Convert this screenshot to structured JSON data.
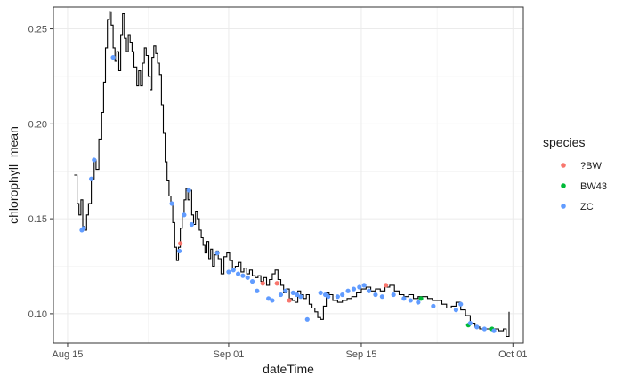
{
  "chart_data": {
    "type": "scatter",
    "xlabel": "dateTime",
    "ylabel": "chlorophyll_mean",
    "x_tick_labels": [
      "Aug 15",
      "Sep 01",
      "Sep 15",
      "Oct 01"
    ],
    "x_ticks_day": [
      -16,
      1,
      15,
      31
    ],
    "y_tick_labels": [
      "0.10",
      "0.15",
      "0.20",
      "0.25"
    ],
    "y_ticks": [
      0.1,
      0.15,
      0.2,
      0.25
    ],
    "xlim": [
      -17.5,
      32.1
    ],
    "ylim": [
      0.0845,
      0.2615
    ],
    "grid": true,
    "legend_position": "right",
    "legend_title": "species",
    "legend": [
      {
        "label": "?BW",
        "color": "#F8766D"
      },
      {
        "label": "BW43",
        "color": "#00BA38"
      },
      {
        "label": "ZC",
        "color": "#619CFF"
      }
    ],
    "line": {
      "color": "#000000",
      "points": [
        [
          -15.3,
          0.173
        ],
        [
          -15.0,
          0.158
        ],
        [
          -14.8,
          0.152
        ],
        [
          -14.6,
          0.16
        ],
        [
          -14.4,
          0.146
        ],
        [
          -14.2,
          0.144
        ],
        [
          -14.0,
          0.152
        ],
        [
          -13.8,
          0.158
        ],
        [
          -13.5,
          0.171
        ],
        [
          -13.2,
          0.181
        ],
        [
          -13.0,
          0.176
        ],
        [
          -12.7,
          0.192
        ],
        [
          -12.4,
          0.206
        ],
        [
          -12.2,
          0.222
        ],
        [
          -12.0,
          0.24
        ],
        [
          -11.8,
          0.255
        ],
        [
          -11.6,
          0.259
        ],
        [
          -11.4,
          0.252
        ],
        [
          -11.2,
          0.24
        ],
        [
          -11.0,
          0.233
        ],
        [
          -10.8,
          0.238
        ],
        [
          -10.6,
          0.228
        ],
        [
          -10.4,
          0.247
        ],
        [
          -10.2,
          0.258
        ],
        [
          -10.0,
          0.245
        ],
        [
          -9.8,
          0.238
        ],
        [
          -9.6,
          0.247
        ],
        [
          -9.4,
          0.243
        ],
        [
          -9.2,
          0.238
        ],
        [
          -9.0,
          0.23
        ],
        [
          -8.7,
          0.22
        ],
        [
          -8.5,
          0.228
        ],
        [
          -8.3,
          0.22
        ],
        [
          -8.1,
          0.232
        ],
        [
          -7.9,
          0.24
        ],
        [
          -7.7,
          0.236
        ],
        [
          -7.5,
          0.225
        ],
        [
          -7.3,
          0.218
        ],
        [
          -7.1,
          0.235
        ],
        [
          -6.9,
          0.241
        ],
        [
          -6.7,
          0.237
        ],
        [
          -6.5,
          0.232
        ],
        [
          -6.3,
          0.226
        ],
        [
          -6.1,
          0.21
        ],
        [
          -5.9,
          0.195
        ],
        [
          -5.7,
          0.18
        ],
        [
          -5.5,
          0.17
        ],
        [
          -5.3,
          0.162
        ],
        [
          -5.1,
          0.158
        ],
        [
          -4.9,
          0.148
        ],
        [
          -4.7,
          0.135
        ],
        [
          -4.5,
          0.128
        ],
        [
          -4.3,
          0.135
        ],
        [
          -4.1,
          0.145
        ],
        [
          -3.9,
          0.152
        ],
        [
          -3.7,
          0.16
        ],
        [
          -3.5,
          0.166
        ],
        [
          -3.3,
          0.16
        ],
        [
          -3.1,
          0.165
        ],
        [
          -2.9,
          0.152
        ],
        [
          -2.7,
          0.147
        ],
        [
          -2.5,
          0.154
        ],
        [
          -2.3,
          0.15
        ],
        [
          -2.1,
          0.144
        ],
        [
          -1.9,
          0.14
        ],
        [
          -1.7,
          0.136
        ],
        [
          -1.5,
          0.132
        ],
        [
          -1.3,
          0.138
        ],
        [
          -1.1,
          0.129
        ],
        [
          -0.9,
          0.134
        ],
        [
          -0.7,
          0.125
        ],
        [
          -0.5,
          0.131
        ],
        [
          -0.3,
          0.133
        ],
        [
          -0.1,
          0.129
        ],
        [
          0.2,
          0.121
        ],
        [
          0.5,
          0.13
        ],
        [
          0.8,
          0.132
        ],
        [
          1.1,
          0.128
        ],
        [
          1.4,
          0.124
        ],
        [
          1.7,
          0.125
        ],
        [
          2.0,
          0.127
        ],
        [
          2.3,
          0.122
        ],
        [
          2.6,
          0.124
        ],
        [
          2.9,
          0.121
        ],
        [
          3.2,
          0.123
        ],
        [
          3.5,
          0.12
        ],
        [
          3.8,
          0.119
        ],
        [
          4.1,
          0.12
        ],
        [
          4.4,
          0.117
        ],
        [
          4.7,
          0.119
        ],
        [
          5.0,
          0.115
        ],
        [
          5.3,
          0.118
        ],
        [
          5.6,
          0.121
        ],
        [
          5.9,
          0.123
        ],
        [
          6.2,
          0.118
        ],
        [
          6.5,
          0.115
        ],
        [
          6.8,
          0.111
        ],
        [
          7.1,
          0.113
        ],
        [
          7.4,
          0.108
        ],
        [
          7.7,
          0.107
        ],
        [
          8.0,
          0.106
        ],
        [
          8.3,
          0.112
        ],
        [
          8.6,
          0.11
        ],
        [
          8.9,
          0.108
        ],
        [
          9.2,
          0.11
        ],
        [
          9.5,
          0.105
        ],
        [
          9.8,
          0.103
        ],
        [
          10.1,
          0.101
        ],
        [
          10.4,
          0.098
        ],
        [
          10.7,
          0.097
        ],
        [
          11.0,
          0.104
        ],
        [
          11.3,
          0.111
        ],
        [
          11.6,
          0.11
        ],
        [
          12.0,
          0.107
        ],
        [
          12.5,
          0.106
        ],
        [
          13.0,
          0.107
        ],
        [
          13.5,
          0.108
        ],
        [
          14.0,
          0.109
        ],
        [
          14.5,
          0.111
        ],
        [
          15.0,
          0.113
        ],
        [
          15.5,
          0.114
        ],
        [
          16.0,
          0.112
        ],
        [
          16.5,
          0.113
        ],
        [
          17.0,
          0.112
        ],
        [
          17.5,
          0.114
        ],
        [
          18.0,
          0.115
        ],
        [
          18.5,
          0.112
        ],
        [
          19.0,
          0.11
        ],
        [
          19.5,
          0.109
        ],
        [
          20.0,
          0.11
        ],
        [
          20.5,
          0.108
        ],
        [
          21.0,
          0.109
        ],
        [
          21.5,
          0.109
        ],
        [
          22.0,
          0.108
        ],
        [
          22.5,
          0.107
        ],
        [
          23.0,
          0.107
        ],
        [
          23.5,
          0.105
        ],
        [
          24.0,
          0.103
        ],
        [
          24.5,
          0.104
        ],
        [
          25.0,
          0.106
        ],
        [
          25.5,
          0.102
        ],
        [
          26.0,
          0.099
        ],
        [
          26.5,
          0.095
        ],
        [
          27.0,
          0.093
        ],
        [
          27.5,
          0.092
        ],
        [
          28.0,
          0.092
        ],
        [
          28.5,
          0.092
        ],
        [
          29.0,
          0.092
        ],
        [
          29.5,
          0.091
        ],
        [
          30.0,
          0.092
        ],
        [
          30.3,
          0.088
        ],
        [
          30.6,
          0.101
        ]
      ]
    },
    "series": [
      {
        "name": "?BW",
        "color": "#F8766D",
        "x": [
          -4.1,
          4.6,
          6.1,
          7.4,
          17.6
        ],
        "y": [
          0.137,
          0.116,
          0.116,
          0.107,
          0.115
        ]
      },
      {
        "name": "BW43",
        "color": "#00BA38",
        "x": [
          21.3,
          26.3,
          28.8
        ],
        "y": [
          0.108,
          0.094,
          0.092
        ]
      },
      {
        "name": "ZC",
        "color": "#619CFF",
        "x": [
          -14.5,
          -14.3,
          -13.5,
          -13.2,
          -11.2,
          -5.0,
          -4.2,
          -3.7,
          -3.2,
          -2.9,
          -0.2,
          1.0,
          1.5,
          2.0,
          2.5,
          3.0,
          3.5,
          4.0,
          5.2,
          5.6,
          6.5,
          7.0,
          7.8,
          8.2,
          8.6,
          9.3,
          10.7,
          11.2,
          11.5,
          12.5,
          13.0,
          13.6,
          14.2,
          14.8,
          15.3,
          15.8,
          16.5,
          17.2,
          18.4,
          19.5,
          20.2,
          21.0,
          22.6,
          25.0,
          25.5,
          26.5,
          27.2,
          28.0,
          29.0
        ],
        "y": [
          0.144,
          0.145,
          0.171,
          0.181,
          0.235,
          0.158,
          0.133,
          0.152,
          0.165,
          0.147,
          0.132,
          0.122,
          0.123,
          0.121,
          0.12,
          0.119,
          0.117,
          0.112,
          0.108,
          0.107,
          0.11,
          0.112,
          0.111,
          0.11,
          0.109,
          0.097,
          0.111,
          0.11,
          0.109,
          0.109,
          0.11,
          0.112,
          0.113,
          0.114,
          0.115,
          0.112,
          0.11,
          0.109,
          0.11,
          0.108,
          0.107,
          0.106,
          0.104,
          0.102,
          0.105,
          0.095,
          0.093,
          0.092,
          0.091
        ]
      }
    ]
  }
}
